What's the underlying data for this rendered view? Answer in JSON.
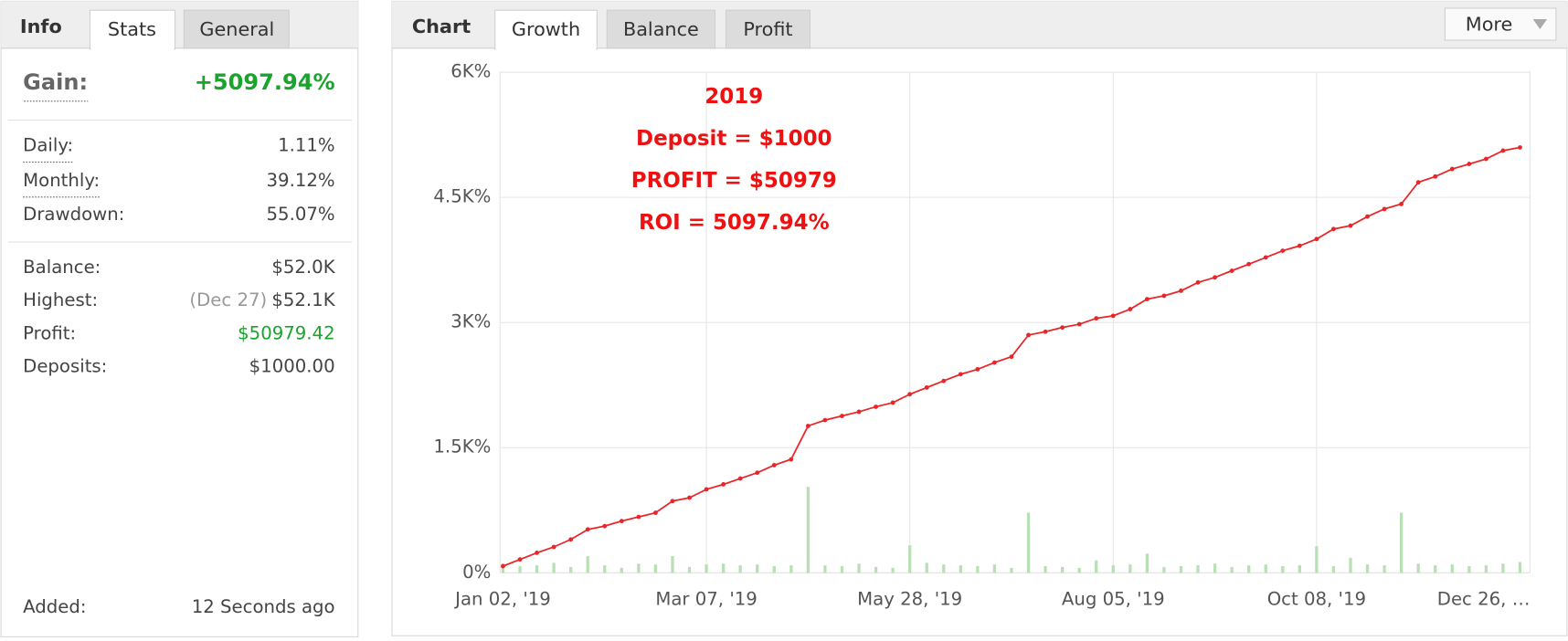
{
  "panel": {
    "title": "Info",
    "tabs": [
      "Stats",
      "General"
    ],
    "gain": {
      "label": "Gain:",
      "value": "+5097.94%"
    },
    "rates": [
      {
        "label": "Daily:",
        "value": "1.11%"
      },
      {
        "label": "Monthly:",
        "value": "39.12%"
      },
      {
        "label": "Drawdown:",
        "value": "55.07%"
      }
    ],
    "amounts": [
      {
        "label": "Balance:",
        "value": "$52.0K"
      },
      {
        "label": "Highest:",
        "note": "(Dec 27)",
        "value": "$52.1K"
      },
      {
        "label": "Profit:",
        "value": "$50979.42"
      },
      {
        "label": "Deposits:",
        "value": "$1000.00"
      }
    ],
    "added": {
      "label": "Added:",
      "value": "12 Seconds ago"
    }
  },
  "chart_panel": {
    "title": "Chart",
    "tabs": [
      "Growth",
      "Balance",
      "Profit"
    ],
    "more": "More"
  },
  "chart_data": {
    "type": "line",
    "annotations": [
      "2019",
      "Deposit = $1000",
      "PROFIT = $50979",
      "ROI = 5097.94%"
    ],
    "categories": [
      "Jan 02, '19",
      null,
      null,
      null,
      null,
      null,
      null,
      null,
      null,
      null,
      null,
      null,
      "Mar 07, '19",
      null,
      null,
      null,
      null,
      null,
      null,
      null,
      null,
      null,
      null,
      null,
      "May 28, '19",
      null,
      null,
      null,
      null,
      null,
      null,
      null,
      null,
      null,
      null,
      null,
      "Aug 05, '19",
      null,
      null,
      null,
      null,
      null,
      null,
      null,
      null,
      null,
      null,
      null,
      "Oct 08, '19",
      null,
      null,
      null,
      null,
      null,
      null,
      null,
      null,
      null,
      null,
      null,
      "Dec 26, …"
    ],
    "series": [
      {
        "type": "line",
        "color": "#e8262a",
        "values": [
          80,
          160,
          240,
          310,
          400,
          520,
          560,
          620,
          670,
          720,
          860,
          900,
          1000,
          1060,
          1130,
          1200,
          1290,
          1360,
          1760,
          1830,
          1880,
          1930,
          1990,
          2040,
          2140,
          2220,
          2300,
          2380,
          2440,
          2520,
          2590,
          2850,
          2890,
          2940,
          2980,
          3050,
          3080,
          3160,
          3280,
          3320,
          3380,
          3480,
          3540,
          3620,
          3700,
          3780,
          3860,
          3920,
          4000,
          4120,
          4160,
          4270,
          4360,
          4420,
          4680,
          4750,
          4840,
          4900,
          4960,
          5060,
          5098
        ]
      },
      {
        "type": "bar",
        "color": "#b9e0b5",
        "values": [
          110,
          80,
          90,
          120,
          70,
          200,
          90,
          60,
          110,
          100,
          200,
          70,
          100,
          110,
          90,
          100,
          80,
          90,
          1030,
          90,
          80,
          110,
          70,
          60,
          330,
          120,
          100,
          90,
          80,
          100,
          60,
          720,
          80,
          70,
          60,
          150,
          90,
          100,
          230,
          70,
          80,
          90,
          110,
          70,
          90,
          100,
          80,
          90,
          320,
          80,
          180,
          100,
          90,
          720,
          110,
          90,
          100,
          80,
          90,
          110,
          130
        ]
      }
    ],
    "ylim": [
      0,
      6000
    ],
    "yticks": [
      {
        "value": 0,
        "label": "0%"
      },
      {
        "value": 1500,
        "label": "1.5K%"
      },
      {
        "value": 3000,
        "label": "3K%"
      },
      {
        "value": 4500,
        "label": "4.5K%"
      },
      {
        "value": 6000,
        "label": "6K%"
      }
    ],
    "grid": true
  }
}
